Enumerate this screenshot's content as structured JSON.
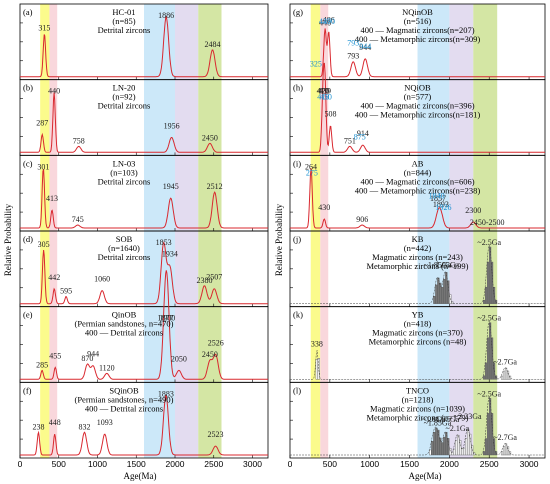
{
  "chart_data": {
    "type": "line",
    "x_range": [
      0,
      3200
    ],
    "x_ticks": [
      0,
      500,
      1000,
      1500,
      2000,
      2500,
      3000
    ],
    "shaded_bands": [
      {
        "x0": 260,
        "x1": 380,
        "color": "#fbfb80"
      },
      {
        "x0": 380,
        "x1": 480,
        "color": "#f8d3d8"
      },
      {
        "x0": 1600,
        "x1": 2000,
        "color": "#c7e6f8"
      },
      {
        "x0": 2000,
        "x1": 2300,
        "color": "#e0d8ee"
      },
      {
        "x0": 2300,
        "x1": 2600,
        "color": "#cfe39a"
      }
    ],
    "line_color": "#d9282f",
    "left": {
      "xlabel": "Age(Ma)",
      "ylabel": "Relative Probability",
      "panels": [
        {
          "id": "(a)",
          "lines": [
            "HC-01",
            "(n=85)",
            "Detrital zircons"
          ],
          "peaks": [
            [
              315,
              0.72
            ],
            [
              1886,
              1.0
            ],
            [
              2484,
              0.45
            ]
          ],
          "labels": [
            {
              "t": "315",
              "x": 315
            },
            {
              "t": "1886",
              "x": 1886
            },
            {
              "t": "2484",
              "x": 2484
            }
          ]
        },
        {
          "id": "(b)",
          "lines": [
            "LN-20",
            "(n=92)",
            "Detrital zircons"
          ],
          "peaks": [
            [
              287,
              0.3
            ],
            [
              440,
              1.0
            ],
            [
              758,
              0.1
            ],
            [
              1956,
              0.25
            ],
            [
              2450,
              0.15
            ]
          ],
          "labels": [
            {
              "t": "440",
              "x": 440
            },
            {
              "t": "287",
              "x": 287
            },
            {
              "t": "758",
              "x": 758
            },
            {
              "t": "1956",
              "x": 1956
            },
            {
              "t": "2450",
              "x": 2450
            }
          ]
        },
        {
          "id": "(c)",
          "lines": [
            "LN-03",
            "(n=103)",
            "Detrital zircons"
          ],
          "peaks": [
            [
              301,
              1.0
            ],
            [
              413,
              0.3
            ],
            [
              745,
              0.05
            ],
            [
              1945,
              0.5
            ],
            [
              2512,
              0.6
            ]
          ],
          "labels": [
            {
              "t": "301",
              "x": 301
            },
            {
              "t": "413",
              "x": 413
            },
            {
              "t": "745",
              "x": 745
            },
            {
              "t": "1945",
              "x": 1945
            },
            {
              "t": "2512",
              "x": 2512
            }
          ]
        },
        {
          "id": "(d)",
          "lines": [
            "SOB",
            "(n=1640)",
            "Detrital zircons"
          ],
          "peaks": [
            [
              305,
              0.9
            ],
            [
              442,
              0.25
            ],
            [
              595,
              0.12
            ],
            [
              1060,
              0.22
            ],
            [
              1853,
              1.0
            ],
            [
              1934,
              0.6
            ],
            [
              2380,
              0.3
            ],
            [
              2507,
              0.25
            ]
          ],
          "labels": [
            {
              "t": "305",
              "x": 305
            },
            {
              "t": "442",
              "x": 442
            },
            {
              "t": "595",
              "x": 595
            },
            {
              "t": "1060",
              "x": 1060
            },
            {
              "t": "1853",
              "x": 1853
            },
            {
              "t": "1934",
              "x": 1934
            },
            {
              "t": "2380",
              "x": 2380
            },
            {
              "t": "2507",
              "x": 2507
            }
          ]
        },
        {
          "id": "(e)",
          "lines": [
            "QinOB",
            "(Permian sandstones, n=470)",
            "400 — Detrital zircons"
          ],
          "peaks": [
            [
              285,
              0.15
            ],
            [
              455,
              0.2
            ],
            [
              870,
              0.25
            ],
            [
              944,
              0.22
            ],
            [
              1120,
              0.1
            ],
            [
              1877,
              1.0
            ],
            [
              1900,
              0.95
            ],
            [
              2050,
              0.15
            ],
            [
              2450,
              0.3
            ],
            [
              2526,
              0.4
            ]
          ],
          "labels": [
            {
              "t": "285",
              "x": 285
            },
            {
              "t": "455",
              "x": 455
            },
            {
              "t": "870",
              "x": 870
            },
            {
              "t": "944",
              "x": 944
            },
            {
              "t": "1120",
              "x": 1120
            },
            {
              "t": "1877",
              "x": 1877
            },
            {
              "t": "1900",
              "x": 1900
            },
            {
              "t": "2050",
              "x": 2050
            },
            {
              "t": "2450",
              "x": 2450
            },
            {
              "t": "2526",
              "x": 2526
            }
          ]
        },
        {
          "id": "(f)",
          "lines": [
            "SQinOB",
            "(Permian sandstones, n=490)",
            "400 — Detrital zircons"
          ],
          "peaks": [
            [
              238,
              0.38
            ],
            [
              448,
              0.35
            ],
            [
              832,
              0.38
            ],
            [
              1093,
              0.35
            ],
            [
              1883,
              1.0
            ],
            [
              2523,
              0.15
            ]
          ],
          "labels": [
            {
              "t": "238",
              "x": 238
            },
            {
              "t": "448",
              "x": 448
            },
            {
              "t": "832",
              "x": 832
            },
            {
              "t": "1093",
              "x": 1093
            },
            {
              "t": "1883",
              "x": 1883
            },
            {
              "t": "2523",
              "x": 2523
            }
          ]
        }
      ]
    },
    "right": {
      "xlabel": "Age(Ma)",
      "ylabel": "Relative Probability",
      "panels": [
        {
          "id": "(g)",
          "lines": [
            "NQinOB",
            "(n=516)",
            "400 — Magmatic zircons(n=207)",
            "400 — Metamorphic zircons(n=309)"
          ],
          "peaks": [
            [
              440,
              0.8
            ],
            [
              486,
              0.75
            ],
            [
              793,
              0.25
            ],
            [
              944,
              0.3
            ]
          ],
          "labels": [
            {
              "t": "440",
              "x": 440
            },
            {
              "t": "486",
              "x": 486
            },
            {
              "t": "793",
              "x": 793
            },
            {
              "t": "944",
              "x": 944
            }
          ],
          "blue_labels": [
            {
              "t": "437",
              "x": 437
            },
            {
              "t": "490",
              "x": 490
            },
            {
              "t": "325",
              "x": 325
            },
            {
              "t": "793",
              "x": 793
            },
            {
              "t": "944",
              "x": 944
            }
          ]
        },
        {
          "id": "(h)",
          "lines": [
            "NQiOB",
            "(n=577)",
            "400 — Magmatic zircons(n=396)",
            "400 — Metamorphic zircons(n=181)"
          ],
          "peaks": [
            [
              410,
              0.4
            ],
            [
              420,
              0.6
            ],
            [
              439,
              1.0
            ],
            [
              508,
              0.45
            ],
            [
              751,
              0.1
            ],
            [
              914,
              0.12
            ]
          ],
          "labels": [
            {
              "t": "439",
              "x": 439
            },
            {
              "t": "420",
              "x": 420
            },
            {
              "t": "410",
              "x": 410
            },
            {
              "t": "508",
              "x": 508
            },
            {
              "t": "751",
              "x": 751
            },
            {
              "t": "914",
              "x": 914
            }
          ],
          "blue_labels": [
            {
              "t": "418",
              "x": 418
            },
            {
              "t": "450",
              "x": 450
            },
            {
              "t": "875",
              "x": 875
            }
          ]
        },
        {
          "id": "(i)",
          "lines": [
            "AB",
            "(n=844)",
            "400 — Magmatic zircons(n=606)",
            "400 — Metamorphic zircons(n=238)"
          ],
          "peaks": [
            [
              264,
              1.0
            ],
            [
              430,
              0.15
            ],
            [
              906,
              0.05
            ],
            [
              1857,
              0.2
            ],
            [
              1893,
              0.2
            ],
            [
              2300,
              0.1
            ]
          ],
          "labels": [
            {
              "t": "264",
              "x": 264
            },
            {
              "t": "430",
              "x": 430
            },
            {
              "t": "906",
              "x": 906
            },
            {
              "t": "1857",
              "x": 1857
            },
            {
              "t": "1893",
              "x": 1893
            },
            {
              "t": "2300",
              "x": 2300
            },
            {
              "t": "2450-2500",
              "x": 2475
            }
          ],
          "blue_labels": [
            {
              "t": "275",
              "x": 275
            },
            {
              "t": "1840",
              "x": 1840
            },
            {
              "t": "1926",
              "x": 1926
            }
          ]
        },
        {
          "id": "(j)",
          "lines": [
            "KB",
            "(n=442)",
            "Magmatic zircons (n=243)",
            "Metamorphic zircons (n=199)"
          ],
          "histogram": true,
          "peaks": [
            [
              1850,
              0.45
            ],
            [
              1950,
              0.55
            ],
            [
              2500,
              1.0
            ]
          ],
          "labels": [
            {
              "t": "~2.5Ga",
              "x": 2500
            },
            {
              "t": "~1.85Ga",
              "x": 1850
            },
            {
              "t": "~1.95Ga",
              "x": 1950
            }
          ]
        },
        {
          "id": "(k)",
          "lines": [
            "YB",
            "(n=418)",
            "Magmatic zircons (n=370)",
            "Metamorphic zircons (n=48)"
          ],
          "histogram": true,
          "peaks": [
            [
              338,
              0.5
            ],
            [
              2500,
              1.0
            ],
            [
              2700,
              0.2
            ]
          ],
          "labels": [
            {
              "t": "338",
              "x": 338
            },
            {
              "t": "~2.5Ga",
              "x": 2500
            },
            {
              "t": "~2.7Ga",
              "x": 2700
            }
          ]
        },
        {
          "id": "(l)",
          "lines": [
            "TNCO",
            "(n=1218)",
            "Magmatic zircons (n=1039)",
            "Metamorphic zircons (n=179)"
          ],
          "histogram": true,
          "peaks": [
            [
              1800,
              0.3
            ],
            [
              1850,
              0.35
            ],
            [
              1950,
              0.4
            ],
            [
              2100,
              0.35
            ],
            [
              2230,
              0.45
            ],
            [
              2500,
              1.0
            ],
            [
              2700,
              0.2
            ]
          ],
          "labels": [
            {
              "t": "~2.5Ga",
              "x": 2500
            },
            {
              "t": "~1.8Ga",
              "x": 1800
            },
            {
              "t": "~1.85Ga",
              "x": 1850
            },
            {
              "t": "~1.95Ga",
              "x": 1950
            },
            {
              "t": "~2.1Ga",
              "x": 2100
            },
            {
              "t": "~2.23Ga",
              "x": 2230
            },
            {
              "t": "~2.7Ga",
              "x": 2700
            }
          ]
        }
      ]
    }
  }
}
